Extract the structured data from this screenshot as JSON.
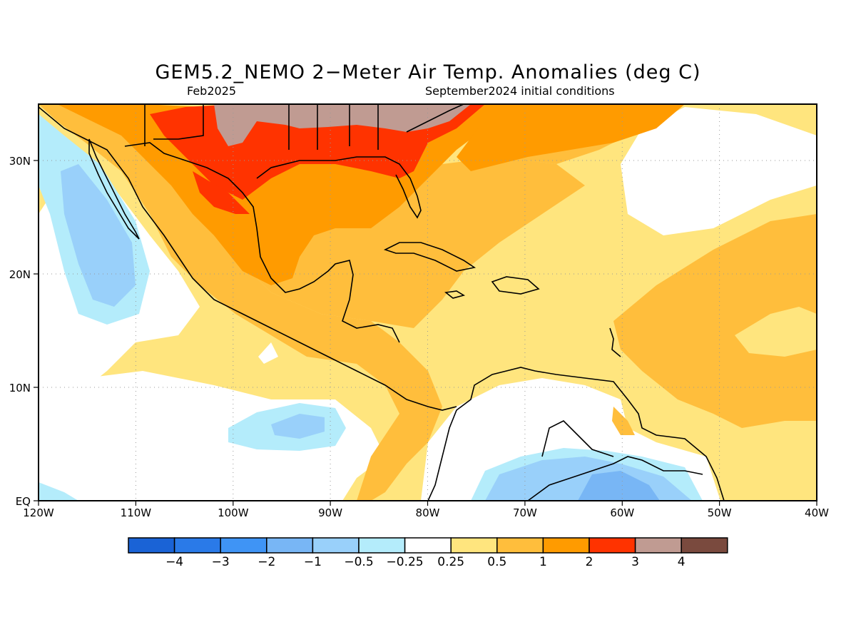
{
  "title": "GEM5.2_NEMO 2−Meter Air Temp. Anomalies (deg C)",
  "subtitle_left": "Feb2025",
  "subtitle_right": "September2024 initial conditions",
  "map": {
    "lon_ticks": [
      "120W",
      "110W",
      "100W",
      "90W",
      "80W",
      "70W",
      "60W",
      "50W",
      "40W"
    ],
    "lat_ticks": [
      "EQ",
      "10N",
      "20N",
      "30N"
    ],
    "lon_range": [
      -120,
      -40
    ],
    "lat_range": [
      0,
      35
    ],
    "grid": "dotted"
  },
  "colorbar": {
    "labels": [
      "−4",
      "−3",
      "−2",
      "−1",
      "−0.5",
      "−0.25",
      "0.25",
      "0.5",
      "1",
      "2",
      "3",
      "4"
    ],
    "colors": [
      "#1a63d6",
      "#2a7ae8",
      "#3f94f5",
      "#78b6f5",
      "#99d0fa",
      "#b4ecfb",
      "#ffffff",
      "#ffe57e",
      "#ffbe3c",
      "#ff9b00",
      "#ff3300",
      "#c09b92",
      "#7a4a3e"
    ]
  }
}
